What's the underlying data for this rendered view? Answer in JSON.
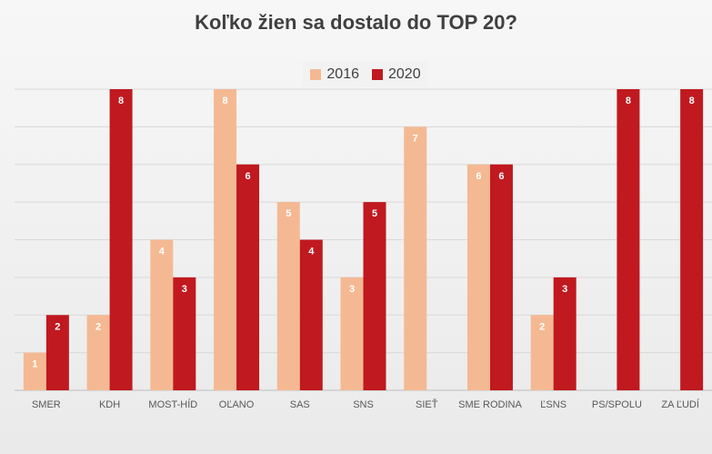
{
  "chart_data": {
    "type": "bar",
    "title": "Koľko žien sa dostalo do TOP 20?",
    "categories": [
      "SMER",
      "KDH",
      "MOST-HÍD",
      "OĽANO",
      "SAS",
      "SNS",
      "SIEŤ",
      "SME RODINA",
      "ĽSNS",
      "PS/SPOLU",
      "ZA ĽUDÍ"
    ],
    "series": [
      {
        "name": "2016",
        "color": "#f4b993",
        "values": [
          1,
          2,
          4,
          8,
          5,
          3,
          7,
          6,
          2,
          null,
          null
        ]
      },
      {
        "name": "2020",
        "color": "#c0191f",
        "values": [
          2,
          8,
          3,
          6,
          4,
          5,
          null,
          6,
          3,
          8,
          8
        ]
      }
    ],
    "ylim": [
      0,
      8
    ],
    "grid": true,
    "legend_position": "top-center",
    "data_labels": true
  }
}
